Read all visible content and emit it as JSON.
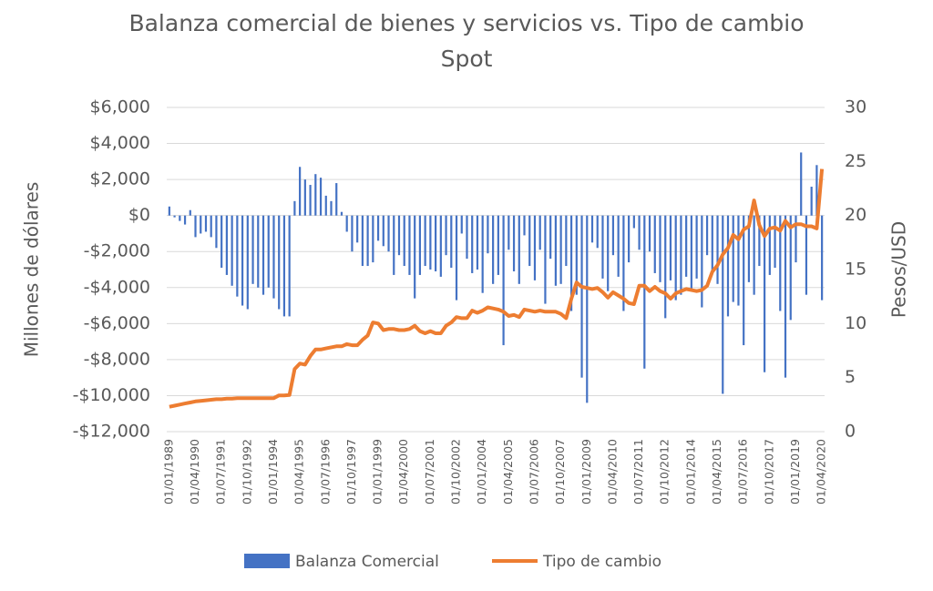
{
  "chart_data": {
    "type": "bar_line",
    "title": "Balanza comercial de bienes y servicios vs. Tipo de cambio",
    "title_line2": "Spot",
    "ylabel": "Millones de dólares",
    "y2label": "Pesos/USD",
    "categories": [
      "01/01/1989",
      null,
      null,
      null,
      null,
      "01/04/1990",
      null,
      null,
      null,
      null,
      "01/07/1991",
      null,
      null,
      null,
      null,
      "01/10/1992",
      null,
      null,
      null,
      null,
      "01/01/1994",
      null,
      null,
      null,
      null,
      "01/04/1995",
      null,
      null,
      null,
      null,
      "01/07/1996",
      null,
      null,
      null,
      null,
      "01/10/1997",
      null,
      null,
      null,
      null,
      "01/01/1999",
      null,
      null,
      null,
      null,
      "01/04/2000",
      null,
      null,
      null,
      null,
      "01/07/2001",
      null,
      null,
      null,
      null,
      "01/10/2002",
      null,
      null,
      null,
      null,
      "01/01/2004",
      null,
      null,
      null,
      null,
      "01/04/2005",
      null,
      null,
      null,
      null,
      "01/07/2006",
      null,
      null,
      null,
      null,
      "01/10/2007",
      null,
      null,
      null,
      null,
      "01/01/2009",
      null,
      null,
      null,
      null,
      "01/04/2010",
      null,
      null,
      null,
      null,
      "01/07/2011",
      null,
      null,
      null,
      null,
      "01/10/2012",
      null,
      null,
      null,
      null,
      "01/01/2014",
      null,
      null,
      null,
      null,
      "01/04/2015",
      null,
      null,
      null,
      null,
      "01/07/2016",
      null,
      null,
      null,
      null,
      "01/10/2017",
      null,
      null,
      null,
      null,
      "01/01/2019",
      null,
      null,
      null,
      null,
      "01/04/2020"
    ],
    "series": [
      {
        "name": "Balanza Comercial",
        "color": "#4472c4",
        "kind": "bar",
        "values": [
          500,
          -100,
          -300,
          -500,
          300,
          -1200,
          -1000,
          -900,
          -1200,
          -1800,
          -2900,
          -3300,
          -3900,
          -4500,
          -5000,
          -5200,
          -3800,
          -4000,
          -4400,
          -4000,
          -4600,
          -5200,
          -5600,
          -5600,
          800,
          2700,
          2000,
          1700,
          2300,
          2100,
          1100,
          800,
          1800,
          200,
          -900,
          -2000,
          -1500,
          -2800,
          -2800,
          -2600,
          -1400,
          -1700,
          -2000,
          -3300,
          -2200,
          -2800,
          -3300,
          -4600,
          -3300,
          -2800,
          -3000,
          -3100,
          -3400,
          -2200,
          -2900,
          -4700,
          -1000,
          -2400,
          -3200,
          -3000,
          -4300,
          -2100,
          -3800,
          -3300,
          -7200,
          -1900,
          -3100,
          -3800,
          -1100,
          -2800,
          -3600,
          -1900,
          -4900,
          -2400,
          -3900,
          -3800,
          -2800,
          -5300,
          -4400,
          -9000,
          -10400,
          -1500,
          -1800,
          -3500,
          -4200,
          -2200,
          -3400,
          -5300,
          -2600,
          -700,
          -1900,
          -8500,
          -2000,
          -3200,
          -3700,
          -5700,
          -3600,
          -4700,
          -4400,
          -3400,
          -4100,
          -3500,
          -5100,
          -2200,
          -3100,
          -3800,
          -9900,
          -5600,
          -4800,
          -5000,
          -7200,
          -3700,
          -4400,
          -2800,
          -8700,
          -3300,
          -2900,
          -5300,
          -9000,
          -5800,
          -2600,
          3500,
          -4400,
          1600,
          2800,
          -4700
        ]
      },
      {
        "name": "Tipo de cambio",
        "color": "#ed7d31",
        "kind": "line",
        "axis": "y2",
        "values": [
          2.3,
          2.4,
          2.5,
          2.6,
          2.7,
          2.8,
          2.85,
          2.9,
          2.95,
          3.0,
          3.0,
          3.05,
          3.05,
          3.1,
          3.1,
          3.1,
          3.1,
          3.1,
          3.1,
          3.1,
          3.1,
          3.35,
          3.35,
          3.4,
          5.8,
          6.3,
          6.2,
          7.0,
          7.6,
          7.6,
          7.7,
          7.8,
          7.9,
          7.9,
          8.1,
          8.0,
          8.0,
          8.5,
          8.9,
          10.1,
          10.0,
          9.4,
          9.5,
          9.5,
          9.4,
          9.4,
          9.5,
          9.8,
          9.3,
          9.1,
          9.3,
          9.1,
          9.1,
          9.8,
          10.1,
          10.6,
          10.5,
          10.5,
          11.2,
          11.0,
          11.2,
          11.5,
          11.4,
          11.3,
          11.1,
          10.7,
          10.8,
          10.6,
          11.3,
          11.2,
          11.1,
          11.2,
          11.1,
          11.1,
          11.1,
          10.9,
          10.5,
          12.3,
          13.8,
          13.4,
          13.3,
          13.2,
          13.3,
          12.9,
          12.4,
          12.9,
          12.6,
          12.3,
          11.9,
          11.8,
          13.5,
          13.5,
          13.0,
          13.4,
          13.0,
          12.8,
          12.3,
          12.8,
          13.0,
          13.2,
          13.1,
          13.0,
          13.1,
          13.5,
          14.8,
          15.4,
          16.4,
          17.0,
          18.2,
          17.8,
          18.7,
          19.0,
          21.4,
          19.1,
          18.1,
          18.8,
          18.9,
          18.6,
          19.5,
          18.9,
          19.2,
          19.2,
          19.0,
          19.0,
          18.8,
          24.3
        ]
      }
    ],
    "ylim": [
      -12000,
      6000
    ],
    "yticks": [
      {
        "value": -12000,
        "label": "-$12,000"
      },
      {
        "value": -10000,
        "label": "-$10,000"
      },
      {
        "value": -8000,
        "label": "-$8,000"
      },
      {
        "value": -6000,
        "label": "-$6,000"
      },
      {
        "value": -4000,
        "label": "-$4,000"
      },
      {
        "value": -2000,
        "label": "-$2,000"
      },
      {
        "value": 0,
        "label": "$0"
      },
      {
        "value": 2000,
        "label": "$2,000"
      },
      {
        "value": 4000,
        "label": "$4,000"
      },
      {
        "value": 6000,
        "label": "$6,000"
      }
    ],
    "y2lim": [
      0,
      30
    ],
    "y2ticks": [
      0,
      5,
      10,
      15,
      20,
      25,
      30
    ],
    "grid": true,
    "legend": "bottom"
  }
}
